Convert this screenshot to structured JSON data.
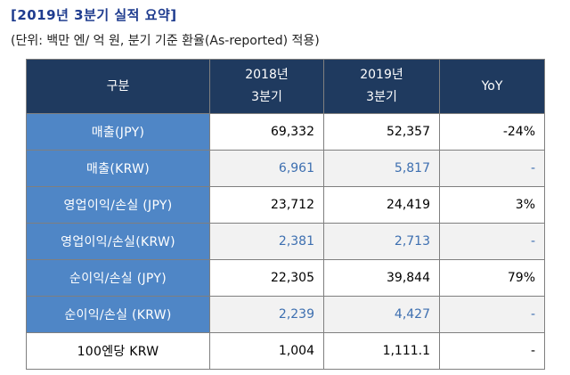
{
  "header": {
    "title": "[2019년 3분기 실적 요약]",
    "subtitle": "(단위: 백만 엔/ 억 원, 분기 기준 환율(As-reported) 적용)"
  },
  "table": {
    "columns": [
      {
        "line1": "구분",
        "line2": ""
      },
      {
        "line1": "2018년",
        "line2": "3분기"
      },
      {
        "line1": "2019년",
        "line2": "3분기"
      },
      {
        "line1": "YoY",
        "line2": ""
      }
    ],
    "rows": [
      {
        "label": "매출(JPY)",
        "v2018": "69,332",
        "v2019": "52,357",
        "yoy": "-24%"
      },
      {
        "label": "매출(KRW)",
        "v2018": "6,961",
        "v2019": "5,817",
        "yoy": "-"
      },
      {
        "label": "영업이익/손실 (JPY)",
        "v2018": "23,712",
        "v2019": "24,419",
        "yoy": "3%"
      },
      {
        "label": "영업이익/손실(KRW)",
        "v2018": "2,381",
        "v2019": "2,713",
        "yoy": "-"
      },
      {
        "label": "순이익/손실 (JPY)",
        "v2018": "22,305",
        "v2019": "39,844",
        "yoy": "79%"
      },
      {
        "label": "순이익/손실 (KRW)",
        "v2018": "2,239",
        "v2019": "4,427",
        "yoy": "-"
      },
      {
        "label": "100엔당 KRW",
        "v2018": "1,004",
        "v2019": "1,111.1",
        "yoy": "-"
      }
    ]
  }
}
